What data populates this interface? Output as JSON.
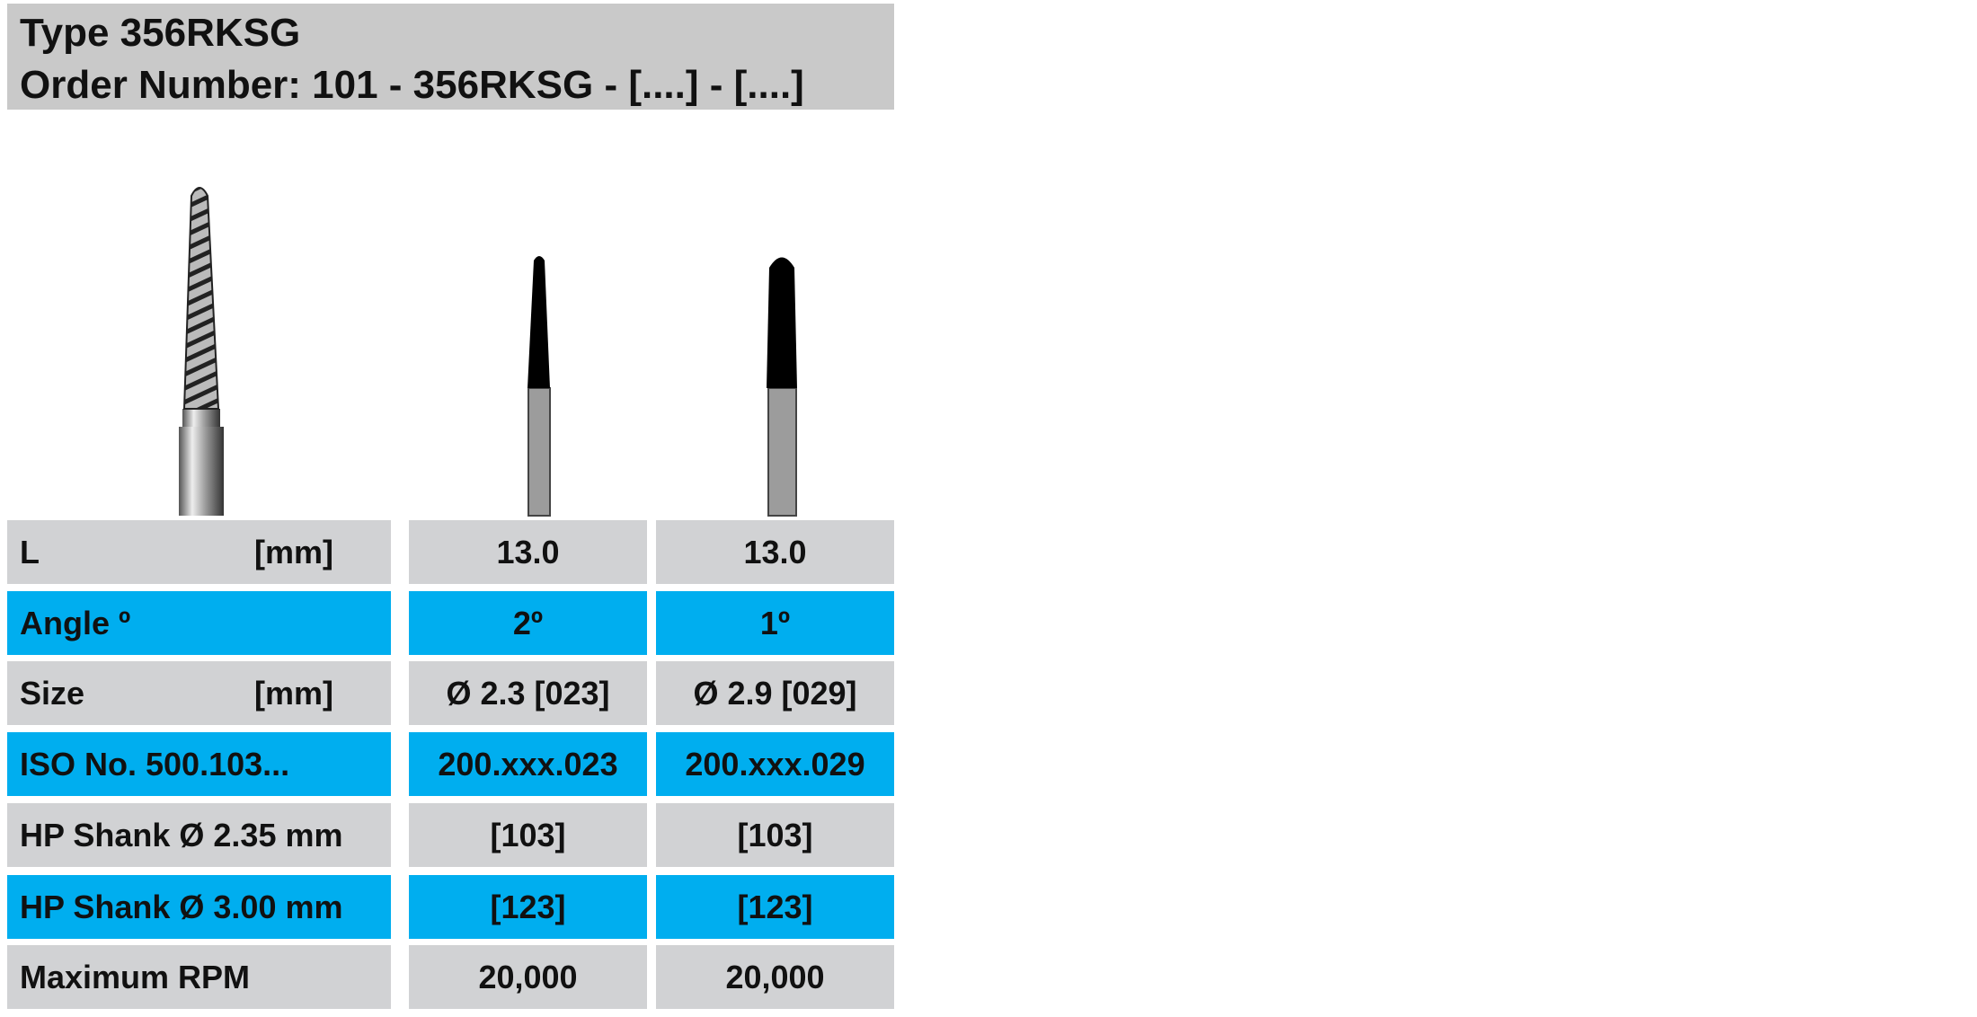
{
  "header": {
    "title": "Type 356RKSG",
    "order_number": "Order Number: 101 - 356RKSG - [....] - [....]"
  },
  "table": {
    "rows": [
      {
        "label": "L",
        "unit": "[mm]",
        "values": [
          "13.0",
          "13.0"
        ]
      },
      {
        "label": "Angle º",
        "values": [
          "2º",
          "1º"
        ]
      },
      {
        "label": "Size",
        "unit": "[mm]",
        "values": [
          "Ø 2.3 [023]",
          "Ø 2.9 [029]"
        ]
      },
      {
        "label": "ISO No.  500.103...",
        "values": [
          "200.xxx.023",
          "200.xxx.029"
        ]
      },
      {
        "label": "HP Shank Ø 2.35 mm",
        "values": [
          "[103]",
          "[103]"
        ]
      },
      {
        "label": "HP Shank Ø 3.00 mm",
        "values": [
          "[123]",
          "[123]"
        ]
      },
      {
        "label": "Maximum  RPM",
        "values": [
          "20,000",
          "20,000"
        ]
      }
    ]
  }
}
